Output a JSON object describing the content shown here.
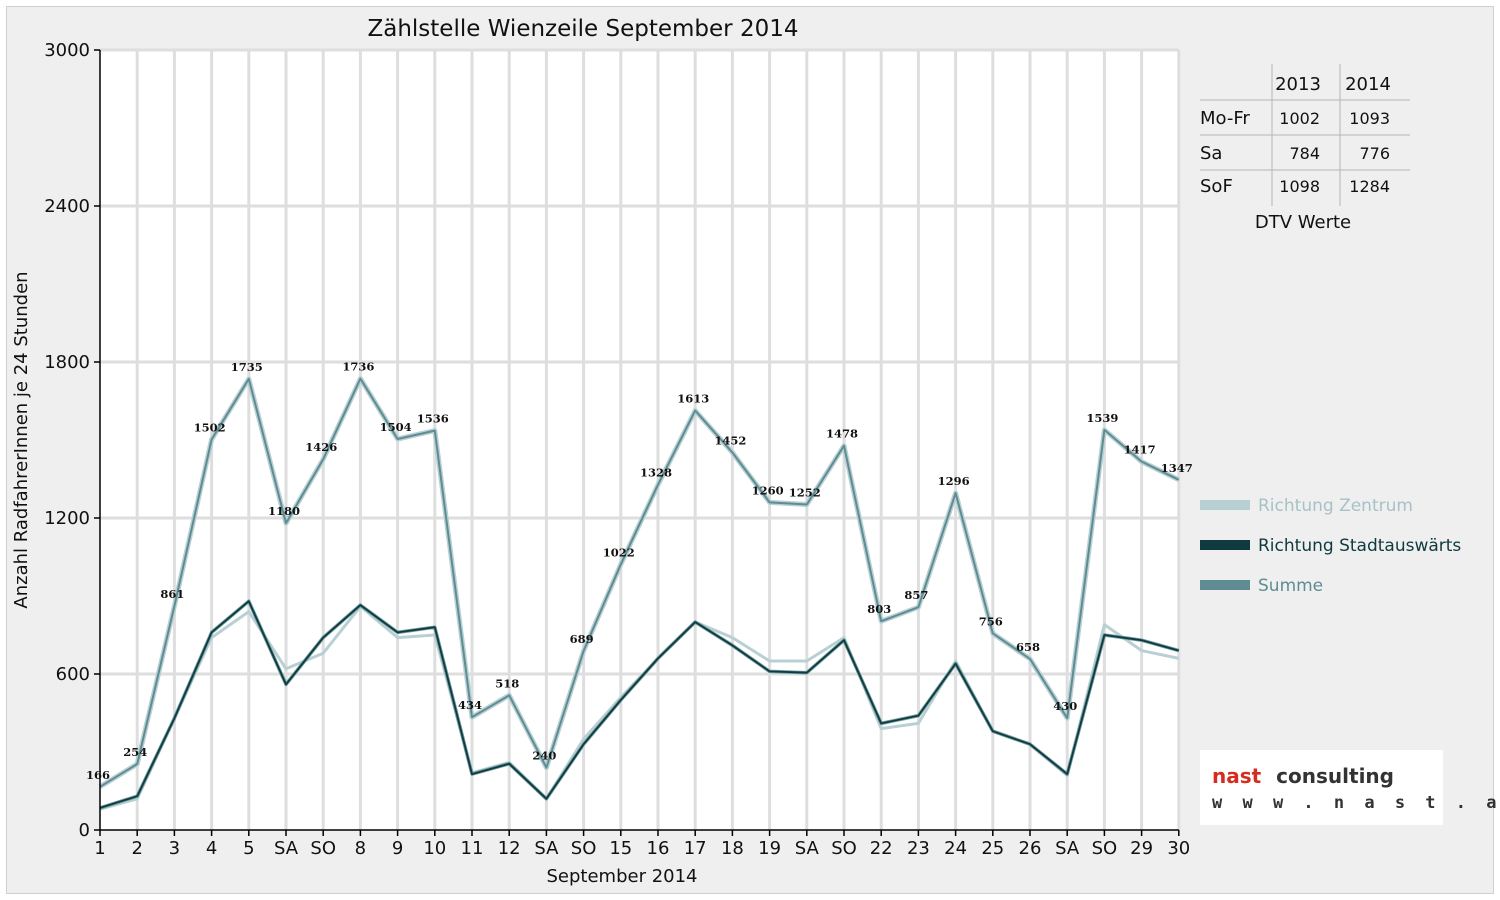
{
  "chart_data": {
    "type": "line",
    "title": "Zählstelle Wienzeile September 2014",
    "xlabel": "September 2014",
    "ylabel": "Anzahl RadfahrerInnen je 24 Stunden",
    "ylim": [
      0,
      3000
    ],
    "yticks": [
      "0",
      "600",
      "1200",
      "1800",
      "2400",
      "3000"
    ],
    "grid": true,
    "legend_position": "right",
    "categories": [
      "1",
      "2",
      "3",
      "4",
      "5",
      "SA",
      "SO",
      "8",
      "9",
      "10",
      "11",
      "12",
      "SA",
      "SO",
      "15",
      "16",
      "17",
      "18",
      "19",
      "SA",
      "SO",
      "22",
      "23",
      "24",
      "25",
      "26",
      "SA",
      "SO",
      "29",
      "30"
    ],
    "weekend_color": "#e00000",
    "series": [
      {
        "name": "Richtung Zentrum",
        "color": "#b8d0d3",
        "values": [
          80,
          120,
          430,
          740,
          840,
          620,
          680,
          860,
          740,
          750,
          220,
          260,
          120,
          350,
          510,
          660,
          800,
          740,
          650,
          650,
          740,
          390,
          410,
          650,
          380,
          330,
          210,
          790,
          690,
          660
        ]
      },
      {
        "name": "Richtung Stadtauswärts",
        "color": "#0f3a3e",
        "values": [
          85,
          130,
          430,
          760,
          880,
          560,
          740,
          865,
          760,
          780,
          215,
          255,
          120,
          330,
          500,
          660,
          800,
          710,
          610,
          605,
          730,
          410,
          440,
          640,
          380,
          330,
          215,
          750,
          730,
          690
        ]
      },
      {
        "name": "Summe",
        "color": "#5f8c93",
        "values": [
          166,
          254,
          861,
          1502,
          1735,
          1180,
          1426,
          1736,
          1504,
          1536,
          434,
          518,
          240,
          689,
          1022,
          1328,
          1613,
          1452,
          1260,
          1252,
          1478,
          803,
          857,
          1296,
          756,
          658,
          430,
          1539,
          1417,
          1347
        ]
      }
    ],
    "data_labels": [
      "166",
      "254",
      "861",
      "1502",
      "1735",
      "1180",
      "1426",
      "1736",
      "1504",
      "1536",
      "434",
      "518",
      "240",
      "689",
      "1022",
      "1328",
      "1613",
      "1452",
      "1260",
      "1252",
      "1478",
      "803",
      "857",
      "1296",
      "756",
      "658",
      "430",
      "1539",
      "1417",
      "1347"
    ]
  },
  "dtv_table": {
    "caption": "DTV Werte",
    "columns": [
      "2013",
      "2014"
    ],
    "rows": [
      {
        "label": "Mo-Fr",
        "values": [
          "1002",
          "1093"
        ]
      },
      {
        "label": "Sa",
        "values": [
          "784",
          "776"
        ]
      },
      {
        "label": "SoF",
        "values": [
          "1098",
          "1284"
        ]
      }
    ]
  },
  "logo": {
    "brand_part1": "nast",
    "brand_part2": "consulting",
    "url": "w w w . n a s t . a t",
    "brand_color": "#d62b1f"
  }
}
